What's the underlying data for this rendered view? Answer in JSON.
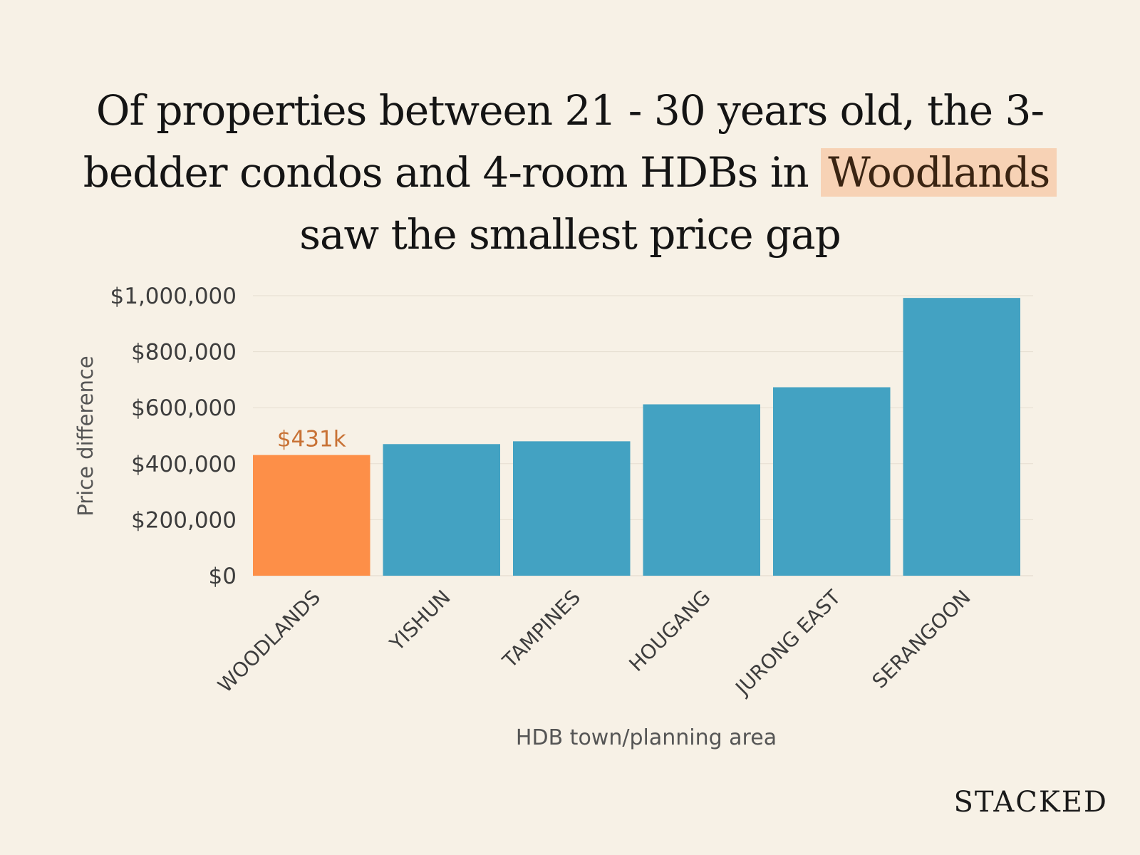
{
  "title": {
    "part1": "Of properties between 21 - 30 years old, the 3-bedder condos and 4-room HDBs in",
    "highlight": "Woodlands",
    "part2": "saw the smallest price gap"
  },
  "brand": "STACKED",
  "colors": {
    "highlight_bar": "#fd8f48",
    "bar": "#43a2c2",
    "highlight_label": "#c87235",
    "highlight_bg": "#f7d2b5",
    "background": "#f7f1e6"
  },
  "chart_data": {
    "type": "bar",
    "title": "Of properties between 21 - 30 years old, the 3-bedder condos and 4-room HDBs in Woodlands saw the smallest price gap",
    "xlabel": "HDB town/planning area",
    "ylabel": "Price difference",
    "categories": [
      "WOODLANDS",
      "YISHUN",
      "TAMPINES",
      "HOUGANG",
      "JURONG EAST",
      "SERANGOON"
    ],
    "values": [
      431000,
      470000,
      480000,
      612000,
      673000,
      992000
    ],
    "highlight_index": 0,
    "data_labels": [
      "$431k",
      "",
      "",
      "",
      "",
      ""
    ],
    "ylim": [
      0,
      1000000
    ],
    "yticks": [
      0,
      200000,
      400000,
      600000,
      800000,
      1000000
    ],
    "ytick_labels": [
      "$0",
      "$200,000",
      "$400,000",
      "$600,000",
      "$800,000",
      "$1,000,000"
    ],
    "grid": true,
    "legend": "none"
  }
}
